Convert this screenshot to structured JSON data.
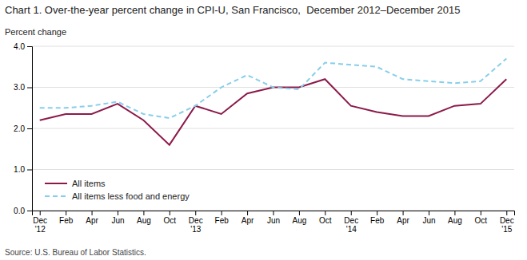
{
  "chart_data": {
    "type": "line",
    "title": "Chart 1. Over-the-year percent change in CPI-U, San Francisco,  December 2012–December 2015",
    "y_label": "Percent change",
    "annotations": [
      "Source: U.S. Bureau of Labor Statistics."
    ],
    "categories": [
      "Dec\n'12",
      "Feb",
      "Apr",
      "Jun",
      "Aug",
      "Oct",
      "Dec\n'13",
      "Feb",
      "Apr",
      "Jun",
      "Aug",
      "Oct",
      "Dec\n'14",
      "Feb",
      "Apr",
      "Jun",
      "Aug",
      "Oct",
      "Dec\n'15"
    ],
    "series": [
      {
        "name": "All items",
        "color": "#8B1A4A",
        "line_style": "solid",
        "values": [
          2.2,
          2.35,
          2.35,
          2.6,
          2.2,
          1.6,
          2.55,
          2.35,
          2.85,
          3.0,
          3.0,
          3.2,
          2.55,
          2.4,
          2.3,
          2.3,
          2.55,
          2.6,
          3.2
        ]
      },
      {
        "name": "All items less food and energy",
        "color": "#87CEEB",
        "line_style": "dashed",
        "values": [
          2.5,
          2.5,
          2.55,
          2.65,
          2.35,
          2.25,
          2.55,
          3.0,
          3.3,
          3.0,
          2.95,
          3.6,
          3.55,
          3.5,
          3.2,
          3.15,
          3.1,
          3.15,
          3.7
        ]
      }
    ],
    "ylim": [
      0.0,
      4.0
    ],
    "yticks": [
      {
        "value": 0,
        "label": "0.0"
      },
      {
        "value": 1,
        "label": "1.0"
      },
      {
        "value": 2,
        "label": "2.0"
      },
      {
        "value": 3,
        "label": "3.0"
      },
      {
        "value": 4,
        "label": "4.0"
      }
    ],
    "grid": true,
    "legend": "lower-left"
  }
}
